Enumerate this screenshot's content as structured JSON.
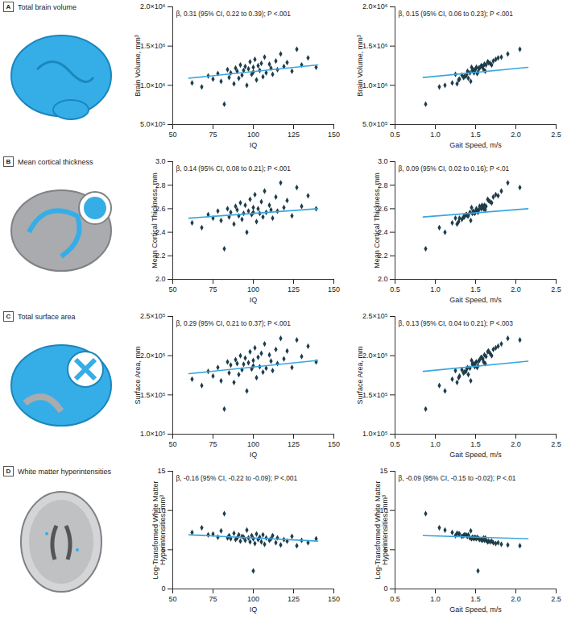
{
  "panels": [
    {
      "label": "A",
      "title": "Total brain volume"
    },
    {
      "label": "B",
      "title": "Mean cortical thickness"
    },
    {
      "label": "C",
      "title": "Total surface area"
    },
    {
      "label": "D",
      "title": "White matter hyperintensities"
    }
  ],
  "chart_data": [
    {
      "type": "scatter",
      "xlabel": "IQ",
      "ylabel": "Brain Volume, mm³",
      "annotation": "β, 0.31 (95% CI, 0.22 to 0.39); P <.001",
      "marker": "diamond",
      "color": "#1e3d4c",
      "xlim": [
        50,
        150
      ],
      "xticks": [
        50,
        75,
        100,
        125,
        150
      ],
      "ylim": [
        500000,
        2000000
      ],
      "yticks": [
        {
          "value": 500000,
          "label": "5.0×10⁵"
        },
        {
          "value": 1000000,
          "label": "1.0×10⁶"
        },
        {
          "value": 1500000,
          "label": "1.5×10⁶"
        },
        {
          "value": 2000000,
          "label": "2.0×10⁶"
        }
      ],
      "x": [
        62,
        68,
        72,
        75,
        78,
        80,
        82,
        84,
        85,
        86,
        88,
        89,
        90,
        91,
        92,
        93,
        94,
        95,
        96,
        97,
        98,
        99,
        100,
        100,
        101,
        102,
        103,
        104,
        105,
        106,
        107,
        108,
        110,
        111,
        112,
        114,
        115,
        117,
        119,
        121,
        124,
        127,
        130,
        134,
        139
      ],
      "values": [
        1030000,
        980000,
        1120000,
        1080000,
        1150000,
        1050000,
        760000,
        1200000,
        1100000,
        1160000,
        1020000,
        1220000,
        1180000,
        1090000,
        1260000,
        1130000,
        1190000,
        1240000,
        1000000,
        1210000,
        1300000,
        1140000,
        1170000,
        1230000,
        1330000,
        1070000,
        1250000,
        1190000,
        1280000,
        1110000,
        1360000,
        1160000,
        1270000,
        1220000,
        1140000,
        1310000,
        1200000,
        1400000,
        1240000,
        1290000,
        1180000,
        1460000,
        1260000,
        1350000,
        1230000
      ],
      "trend": {
        "x": [
          60,
          140
        ],
        "values": [
          1090000,
          1260000
        ],
        "color": "#3aa6dd"
      }
    },
    {
      "type": "scatter",
      "xlabel": "Gait Speed, m/s",
      "ylabel": "Brain Volume, mm³",
      "annotation": "β, 0.15 (95% CI, 0.06 to 0.23); P <.001",
      "marker": "diamond",
      "color": "#1e3d4c",
      "xlim": [
        0.5,
        2.5
      ],
      "xticks": [
        0.5,
        {
          "value": 1,
          "label": "1.0"
        },
        1.5,
        {
          "value": 2,
          "label": "2.0"
        },
        2.5
      ],
      "ylim": [
        500000,
        2000000
      ],
      "yticks": [
        {
          "value": 500000,
          "label": "5.0×10⁵"
        },
        {
          "value": 1000000,
          "label": "1.0×10⁶"
        },
        {
          "value": 1500000,
          "label": "1.5×10⁶"
        },
        {
          "value": 2000000,
          "label": "2.0×10⁶"
        }
      ],
      "x": [
        1.21,
        1.05,
        1.38,
        1.3,
        1.52,
        1.44,
        0.88,
        1.6,
        1.35,
        1.48,
        1.27,
        1.55,
        1.62,
        1.41,
        1.7,
        1.33,
        1.46,
        1.58,
        1.12,
        1.5,
        1.65,
        1.39,
        1.53,
        1.45,
        1.75,
        1.29,
        1.57,
        1.49,
        1.68,
        1.36,
        1.82,
        1.43,
        1.61,
        1.54,
        1.25,
        1.72,
        1.47,
        1.9,
        1.59,
        1.66,
        1.4,
        2.05,
        1.63,
        1.78,
        1.51
      ],
      "values": [
        1030000,
        980000,
        1120000,
        1080000,
        1150000,
        1050000,
        760000,
        1200000,
        1100000,
        1160000,
        1020000,
        1220000,
        1180000,
        1090000,
        1260000,
        1130000,
        1190000,
        1240000,
        1000000,
        1210000,
        1300000,
        1140000,
        1170000,
        1230000,
        1330000,
        1070000,
        1250000,
        1190000,
        1280000,
        1110000,
        1360000,
        1160000,
        1270000,
        1220000,
        1140000,
        1310000,
        1200000,
        1400000,
        1240000,
        1290000,
        1180000,
        1460000,
        1260000,
        1350000,
        1230000
      ],
      "trend": {
        "x": [
          0.85,
          2.15
        ],
        "values": [
          1100000,
          1230000
        ],
        "color": "#3aa6dd"
      }
    },
    {
      "type": "scatter",
      "xlabel": "IQ",
      "ylabel": "Mean Cortical Thickness, mm",
      "annotation": "β, 0.14 (95% CI, 0.08 to 0.21); P <.001",
      "marker": "diamond",
      "color": "#1e3d4c",
      "xlim": [
        50,
        150
      ],
      "xticks": [
        50,
        75,
        100,
        125,
        150
      ],
      "ylim": [
        2,
        3
      ],
      "yticks": [
        {
          "value": 2,
          "label": "2.0"
        },
        2.2,
        2.4,
        2.6,
        2.8,
        {
          "value": 3,
          "label": "3.0"
        }
      ],
      "x": [
        62,
        68,
        72,
        75,
        78,
        80,
        82,
        84,
        85,
        86,
        88,
        89,
        90,
        91,
        92,
        93,
        94,
        95,
        96,
        97,
        98,
        99,
        100,
        100,
        101,
        102,
        103,
        104,
        105,
        106,
        107,
        108,
        110,
        111,
        112,
        114,
        115,
        117,
        119,
        121,
        124,
        127,
        130,
        134,
        139
      ],
      "values": [
        2.48,
        2.44,
        2.55,
        2.52,
        2.58,
        2.5,
        2.26,
        2.6,
        2.53,
        2.57,
        2.47,
        2.62,
        2.59,
        2.54,
        2.65,
        2.51,
        2.56,
        2.63,
        2.4,
        2.58,
        2.68,
        2.55,
        2.57,
        2.61,
        2.72,
        2.49,
        2.6,
        2.56,
        2.66,
        2.53,
        2.75,
        2.57,
        2.63,
        2.59,
        2.52,
        2.7,
        2.58,
        2.82,
        2.61,
        2.67,
        2.54,
        2.78,
        2.62,
        2.71,
        2.6
      ],
      "trend": {
        "x": [
          60,
          140
        ],
        "values": [
          2.52,
          2.6
        ],
        "color": "#3aa6dd"
      }
    },
    {
      "type": "scatter",
      "xlabel": "Gait Speed, m/s",
      "ylabel": "Mean Cortical Thickness, mm",
      "annotation": "β, 0.09 (95% CI, 0.02 to 0.16); P <.01",
      "marker": "diamond",
      "color": "#1e3d4c",
      "xlim": [
        0.5,
        2.5
      ],
      "xticks": [
        0.5,
        {
          "value": 1,
          "label": "1.0"
        },
        1.5,
        {
          "value": 2,
          "label": "2.0"
        },
        2.5
      ],
      "ylim": [
        2,
        3
      ],
      "yticks": [
        {
          "value": 2,
          "label": "2.0"
        },
        2.2,
        2.4,
        2.6,
        2.8,
        {
          "value": 3,
          "label": "3.0"
        }
      ],
      "x": [
        1.21,
        1.05,
        1.38,
        1.3,
        1.52,
        1.44,
        0.88,
        1.6,
        1.35,
        1.48,
        1.27,
        1.55,
        1.62,
        1.41,
        1.7,
        1.33,
        1.46,
        1.58,
        1.12,
        1.5,
        1.65,
        1.39,
        1.53,
        1.45,
        1.75,
        1.29,
        1.57,
        1.49,
        1.68,
        1.36,
        1.82,
        1.43,
        1.61,
        1.54,
        1.25,
        1.72,
        1.47,
        1.9,
        1.59,
        1.66,
        1.4,
        2.05,
        1.63,
        1.78,
        1.51
      ],
      "values": [
        2.48,
        2.44,
        2.55,
        2.52,
        2.58,
        2.5,
        2.26,
        2.6,
        2.53,
        2.57,
        2.47,
        2.62,
        2.59,
        2.54,
        2.65,
        2.51,
        2.56,
        2.63,
        2.4,
        2.58,
        2.68,
        2.55,
        2.57,
        2.61,
        2.72,
        2.49,
        2.6,
        2.56,
        2.66,
        2.53,
        2.75,
        2.57,
        2.63,
        2.59,
        2.52,
        2.7,
        2.58,
        2.82,
        2.61,
        2.67,
        2.54,
        2.78,
        2.62,
        2.71,
        2.6
      ],
      "trend": {
        "x": [
          0.85,
          2.15
        ],
        "values": [
          2.53,
          2.6
        ],
        "color": "#3aa6dd"
      }
    },
    {
      "type": "scatter",
      "xlabel": "IQ",
      "ylabel": "Surface Area, mm",
      "annotation": "β, 0.29 (95% CI, 0.21 to 0.37); P <.001",
      "marker": "diamond",
      "color": "#1e3d4c",
      "xlim": [
        50,
        150
      ],
      "xticks": [
        50,
        75,
        100,
        125,
        150
      ],
      "ylim": [
        100000,
        250000
      ],
      "yticks": [
        {
          "value": 100000,
          "label": "1.0×10⁵"
        },
        {
          "value": 150000,
          "label": "1.5×10⁵"
        },
        {
          "value": 200000,
          "label": "2.0×10⁵"
        },
        {
          "value": 250000,
          "label": "2.5×10⁵"
        }
      ],
      "x": [
        62,
        68,
        72,
        75,
        78,
        80,
        82,
        84,
        85,
        86,
        88,
        89,
        90,
        91,
        92,
        93,
        94,
        95,
        96,
        97,
        98,
        99,
        100,
        100,
        101,
        102,
        103,
        104,
        105,
        106,
        107,
        108,
        110,
        111,
        112,
        114,
        115,
        117,
        119,
        121,
        124,
        127,
        130,
        134,
        139
      ],
      "values": [
        170000,
        162000,
        180000,
        174000,
        185000,
        168000,
        132000,
        192000,
        178000,
        188000,
        166000,
        195000,
        190000,
        176000,
        200000,
        182000,
        189000,
        197000,
        155000,
        191000,
        205000,
        183000,
        187000,
        194000,
        210000,
        172000,
        198000,
        186000,
        203000,
        179000,
        215000,
        184000,
        201000,
        193000,
        181000,
        208000,
        190000,
        222000,
        196000,
        206000,
        185000,
        220000,
        199000,
        212000,
        192000
      ],
      "trend": {
        "x": [
          60,
          140
        ],
        "values": [
          177000,
          194000
        ],
        "color": "#3aa6dd"
      }
    },
    {
      "type": "scatter",
      "xlabel": "Gait Speed, m/s",
      "ylabel": "Surface Area, mm",
      "annotation": "β, 0.13 (95% CI, 0.04 to 0.21); P <.003",
      "marker": "diamond",
      "color": "#1e3d4c",
      "xlim": [
        0.5,
        2.5
      ],
      "xticks": [
        0.5,
        {
          "value": 1,
          "label": "1.0"
        },
        1.5,
        {
          "value": 2,
          "label": "2.0"
        },
        2.5
      ],
      "ylim": [
        100000,
        250000
      ],
      "yticks": [
        {
          "value": 100000,
          "label": "1.0×10⁵"
        },
        {
          "value": 150000,
          "label": "1.5×10⁵"
        },
        {
          "value": 200000,
          "label": "2.0×10⁵"
        },
        {
          "value": 250000,
          "label": "2.5×10⁵"
        }
      ],
      "x": [
        1.21,
        1.05,
        1.38,
        1.3,
        1.52,
        1.44,
        0.88,
        1.6,
        1.35,
        1.48,
        1.27,
        1.55,
        1.62,
        1.41,
        1.7,
        1.33,
        1.46,
        1.58,
        1.12,
        1.5,
        1.65,
        1.39,
        1.53,
        1.45,
        1.75,
        1.29,
        1.57,
        1.49,
        1.68,
        1.36,
        1.82,
        1.43,
        1.61,
        1.54,
        1.25,
        1.72,
        1.47,
        1.9,
        1.59,
        1.66,
        1.4,
        2.05,
        1.63,
        1.78,
        1.51
      ],
      "values": [
        170000,
        162000,
        180000,
        174000,
        185000,
        168000,
        132000,
        192000,
        178000,
        188000,
        166000,
        195000,
        190000,
        176000,
        200000,
        182000,
        189000,
        197000,
        155000,
        191000,
        205000,
        183000,
        187000,
        194000,
        210000,
        172000,
        198000,
        186000,
        203000,
        179000,
        215000,
        184000,
        201000,
        193000,
        181000,
        208000,
        190000,
        222000,
        196000,
        206000,
        185000,
        220000,
        199000,
        212000,
        192000
      ],
      "trend": {
        "x": [
          0.85,
          2.15
        ],
        "values": [
          180000,
          193000
        ],
        "color": "#3aa6dd"
      }
    },
    {
      "type": "scatter",
      "xlabel": "IQ",
      "ylabel": "Log-Transformed White Matter\nHyperintensities, mm³",
      "annotation": "β, -0.16 (95% CI, -0.22 to -0.09); P <.001",
      "marker": "diamond",
      "color": "#1e3d4c",
      "xlim": [
        50,
        150
      ],
      "xticks": [
        50,
        75,
        100,
        125,
        150
      ],
      "ylim": [
        0,
        15
      ],
      "yticks": [
        0,
        5,
        10,
        15
      ],
      "x": [
        62,
        68,
        72,
        75,
        78,
        80,
        82,
        84,
        85,
        86,
        88,
        89,
        90,
        91,
        92,
        93,
        94,
        95,
        96,
        97,
        98,
        99,
        100,
        100,
        101,
        102,
        103,
        104,
        105,
        106,
        107,
        108,
        110,
        111,
        112,
        114,
        115,
        117,
        119,
        121,
        124,
        127,
        130,
        134,
        139
      ],
      "values": [
        7.2,
        7.8,
        6.9,
        7.0,
        6.6,
        7.4,
        9.6,
        6.5,
        6.8,
        6.4,
        7.1,
        6.3,
        6.5,
        6.9,
        6.1,
        6.7,
        6.6,
        6.2,
        7.5,
        6.5,
        6.0,
        6.8,
        2.3,
        6.4,
        5.8,
        7.0,
        6.3,
        6.6,
        6.0,
        6.9,
        5.7,
        6.5,
        6.2,
        6.4,
        6.8,
        5.9,
        6.5,
        5.6,
        6.3,
        6.1,
        6.7,
        5.5,
        6.2,
        5.9,
        6.4
      ],
      "trend": {
        "x": [
          60,
          140
        ],
        "values": [
          6.9,
          6.1
        ],
        "color": "#3aa6dd"
      }
    },
    {
      "type": "scatter",
      "xlabel": "Gait Speed, m/s",
      "ylabel": "Log-Transformed White Matter\nHyperintensities, mm³",
      "annotation": "β, -0.09 (95% CI, -0.15 to -0.02); P <.01",
      "marker": "diamond",
      "color": "#1e3d4c",
      "xlim": [
        0.5,
        2.5
      ],
      "xticks": [
        0.5,
        {
          "value": 1,
          "label": "1.0"
        },
        1.5,
        {
          "value": 2,
          "label": "2.0"
        },
        2.5
      ],
      "ylim": [
        0,
        15
      ],
      "yticks": [
        0,
        5,
        10,
        15
      ],
      "x": [
        1.21,
        1.05,
        1.38,
        1.3,
        1.52,
        1.44,
        0.88,
        1.6,
        1.35,
        1.48,
        1.27,
        1.55,
        1.62,
        1.41,
        1.7,
        1.33,
        1.46,
        1.58,
        1.12,
        1.5,
        1.65,
        1.39,
        1.53,
        1.45,
        1.75,
        1.29,
        1.57,
        1.49,
        1.68,
        1.36,
        1.82,
        1.43,
        1.61,
        1.54,
        1.25,
        1.72,
        1.47,
        1.9,
        1.59,
        1.66,
        1.4,
        2.05,
        1.63,
        1.78,
        1.51
      ],
      "values": [
        7.2,
        7.8,
        6.9,
        7.0,
        6.6,
        7.4,
        9.6,
        6.5,
        6.8,
        6.4,
        7.1,
        6.3,
        6.5,
        6.9,
        6.1,
        6.7,
        6.6,
        6.2,
        7.5,
        6.5,
        6.0,
        6.8,
        2.3,
        6.4,
        5.8,
        7.0,
        6.3,
        6.6,
        6.0,
        6.9,
        5.7,
        6.5,
        6.2,
        6.4,
        6.8,
        5.9,
        6.5,
        5.6,
        6.3,
        6.1,
        6.7,
        5.5,
        6.2,
        5.9,
        6.4
      ],
      "trend": {
        "x": [
          0.85,
          2.15
        ],
        "values": [
          6.8,
          6.4
        ],
        "color": "#3aa6dd"
      }
    }
  ]
}
